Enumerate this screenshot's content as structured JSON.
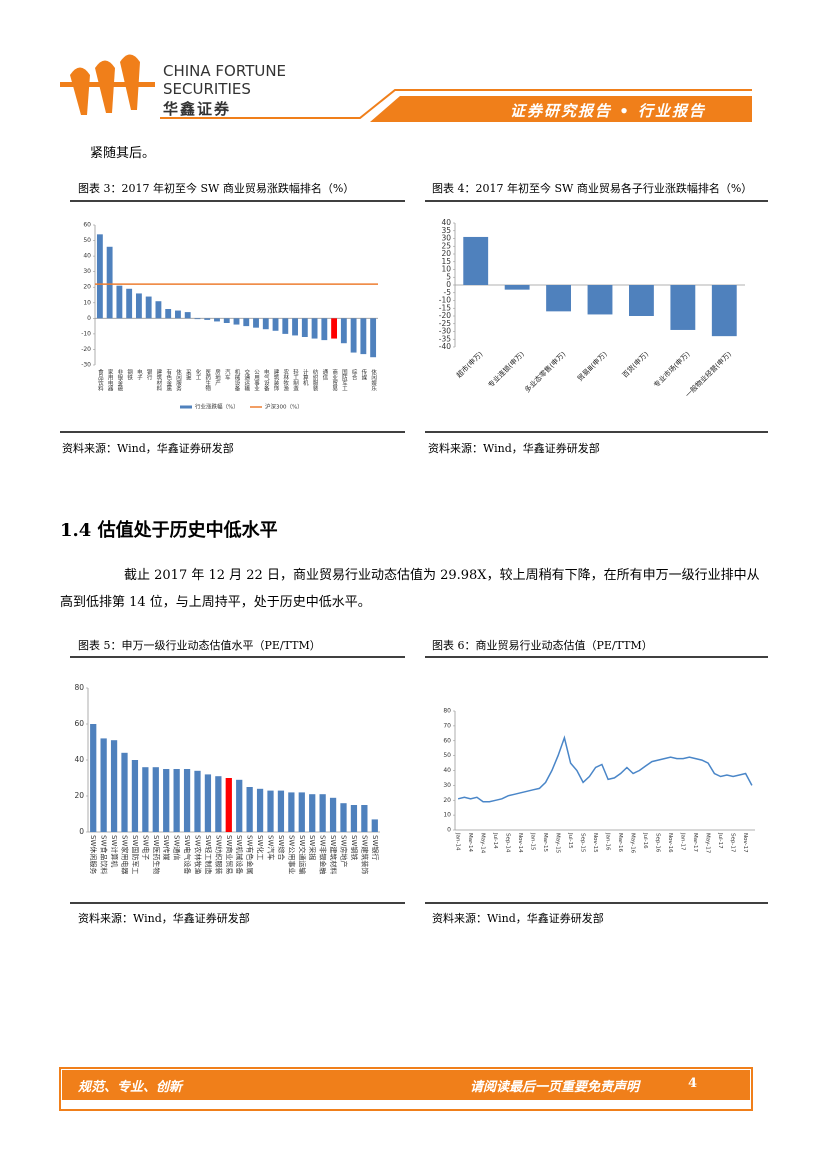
{
  "header": {
    "brand_en_1": "CHINA FORTUNE",
    "brand_en_2": "SECURITIES",
    "brand_cn": "华鑫证券",
    "report_type": "证券研究报告 • 行业报告"
  },
  "intro_text": "紧随其后。",
  "section": {
    "heading": "1.4 估值处于历史中低水平",
    "paragraph": "截止 2017 年 12 月 22 日，商业贸易行业动态估值为 29.98X，较上周稍有下降，在所有申万一级行业排中从高到低排第 14 位，与上周持平，处于历史中低水平。"
  },
  "figures": [
    {
      "caption": "图表 3：2017 年初至今 SW 商业贸易涨跌幅排名（%）",
      "source": "资料来源：Wind，华鑫证券研发部",
      "chart": {
        "type": "bar",
        "series_name": "行业涨跌幅（%）",
        "color": "#4f81bd",
        "highlight_index": 24,
        "highlight_color": "#ff0000",
        "categories": [
          "食品饮料",
          "家用电器",
          "非银金融",
          "钢铁",
          "电子",
          "银行",
          "建筑材料",
          "有色金属",
          "休闲服务",
          "采掘",
          "化工",
          "医药生物",
          "房地产",
          "汽车",
          "机械设备",
          "交通运输",
          "公用事业",
          "电气设备",
          "建筑装饰",
          "农林牧渔",
          "轻工制造",
          "计算机",
          "纺织服装",
          "通信",
          "商业贸易",
          "国防军工",
          "综合",
          "传媒",
          "休闲娱乐"
        ],
        "values": [
          54,
          46,
          21,
          19,
          16,
          14,
          11,
          6,
          5,
          4,
          -0.5,
          -1,
          -2,
          -3,
          -4,
          -5,
          -6,
          -7,
          -8,
          -10,
          -11,
          -12,
          -13,
          -14,
          -13,
          -16,
          -22,
          -23,
          -25
        ],
        "reference": {
          "name": "沪深300（%）",
          "value": 22,
          "color": "#ed7d31"
        },
        "ylim": [
          -30,
          60
        ],
        "yticks": [
          -30,
          -20,
          -10,
          0,
          10,
          20,
          30,
          40,
          50,
          60
        ]
      }
    },
    {
      "caption": "图表 4：2017 年初至今 SW 商业贸易各子行业涨跌幅排名（%）",
      "source": "资料来源：Wind，华鑫证券研发部",
      "chart": {
        "type": "bar",
        "color": "#4f81bd",
        "categories": [
          "超市(申万)",
          "专业连锁(申万)",
          "多业态零售(申万)",
          "贸易Ⅲ(申万)",
          "百货(申万)",
          "专业市场(申万)",
          "一般物业经营(申万)"
        ],
        "values": [
          31,
          -3,
          -17,
          -19,
          -20,
          -29,
          -33
        ],
        "ylim": [
          -40,
          40
        ],
        "yticks": [
          -40,
          -35,
          -30,
          -25,
          -20,
          -15,
          -10,
          -5,
          0,
          5,
          10,
          15,
          20,
          25,
          30,
          35,
          40
        ]
      }
    },
    {
      "caption": "图表 5：申万一级行业动态估值水平（PE/TTM）",
      "source": "资料来源：Wind，华鑫证券研发部",
      "chart": {
        "type": "bar",
        "color": "#4f81bd",
        "highlight_index": 13,
        "highlight_color": "#ff0000",
        "categories": [
          "SW休闲服务",
          "SW食品饮料",
          "SW计算机",
          "SW家用电器",
          "SW国防军工",
          "SW电子",
          "SW医药生物",
          "SW传媒",
          "SW通信",
          "SW电气设备",
          "SW农林牧渔",
          "SW轻工制造",
          "SW纺织服装",
          "SW商业贸易",
          "SW机械设备",
          "SW有色金属",
          "SW化工",
          "SW汽车",
          "SW综合",
          "SW公用事业",
          "SW交通运输",
          "SW采掘",
          "SW非银金融",
          "SW建筑材料",
          "SW房地产",
          "SW钢铁",
          "SW建筑装饰",
          "SW银行"
        ],
        "values": [
          60,
          52,
          51,
          44,
          40,
          36,
          36,
          35,
          35,
          35,
          34,
          32,
          31,
          30,
          29,
          25,
          24,
          23,
          23,
          22,
          22,
          21,
          21,
          19,
          16,
          15,
          15,
          7
        ],
        "ylim": [
          0,
          80
        ],
        "yticks": [
          0,
          20,
          40,
          60,
          80
        ]
      }
    },
    {
      "caption": "图表 6：商业贸易行业动态估值（PE/TTM）",
      "source": "资料来源：Wind，华鑫证券研发部",
      "chart": {
        "type": "line",
        "color": "#4a86c8",
        "categories": [
          "Jan-14",
          null,
          "Mar-14",
          null,
          "May-14",
          null,
          "Jul-14",
          null,
          "Sep-14",
          null,
          "Nov-14",
          null,
          "Jan-15",
          null,
          "Mar-15",
          null,
          "May-15",
          null,
          "Jul-15",
          null,
          "Sep-15",
          null,
          "Nov-15",
          null,
          "Jan-16",
          null,
          "Mar-16",
          null,
          "May-16",
          null,
          "Jul-16",
          null,
          "Sep-16",
          null,
          "Nov-16",
          null,
          "Jan-17",
          null,
          "Mar-17",
          null,
          "May-17",
          null,
          "Jul-17",
          null,
          "Sep-17",
          null,
          "Nov-17",
          null
        ],
        "values": [
          21,
          22,
          21,
          22,
          19,
          19,
          20,
          21,
          23,
          24,
          25,
          26,
          27,
          28,
          32,
          40,
          50,
          62,
          45,
          40,
          32,
          36,
          42,
          44,
          34,
          35,
          38,
          42,
          38,
          40,
          43,
          46,
          47,
          48,
          49,
          48,
          48,
          49,
          48,
          47,
          45,
          38,
          36,
          37,
          36,
          37,
          38,
          30
        ],
        "ylim": [
          0,
          80
        ],
        "yticks": [
          0,
          10,
          20,
          30,
          40,
          50,
          60,
          70,
          80
        ]
      }
    }
  ],
  "footer": {
    "motto": "规范、专业、创新",
    "disclaimer": "请阅读最后一页重要免责声明",
    "page": "4"
  }
}
